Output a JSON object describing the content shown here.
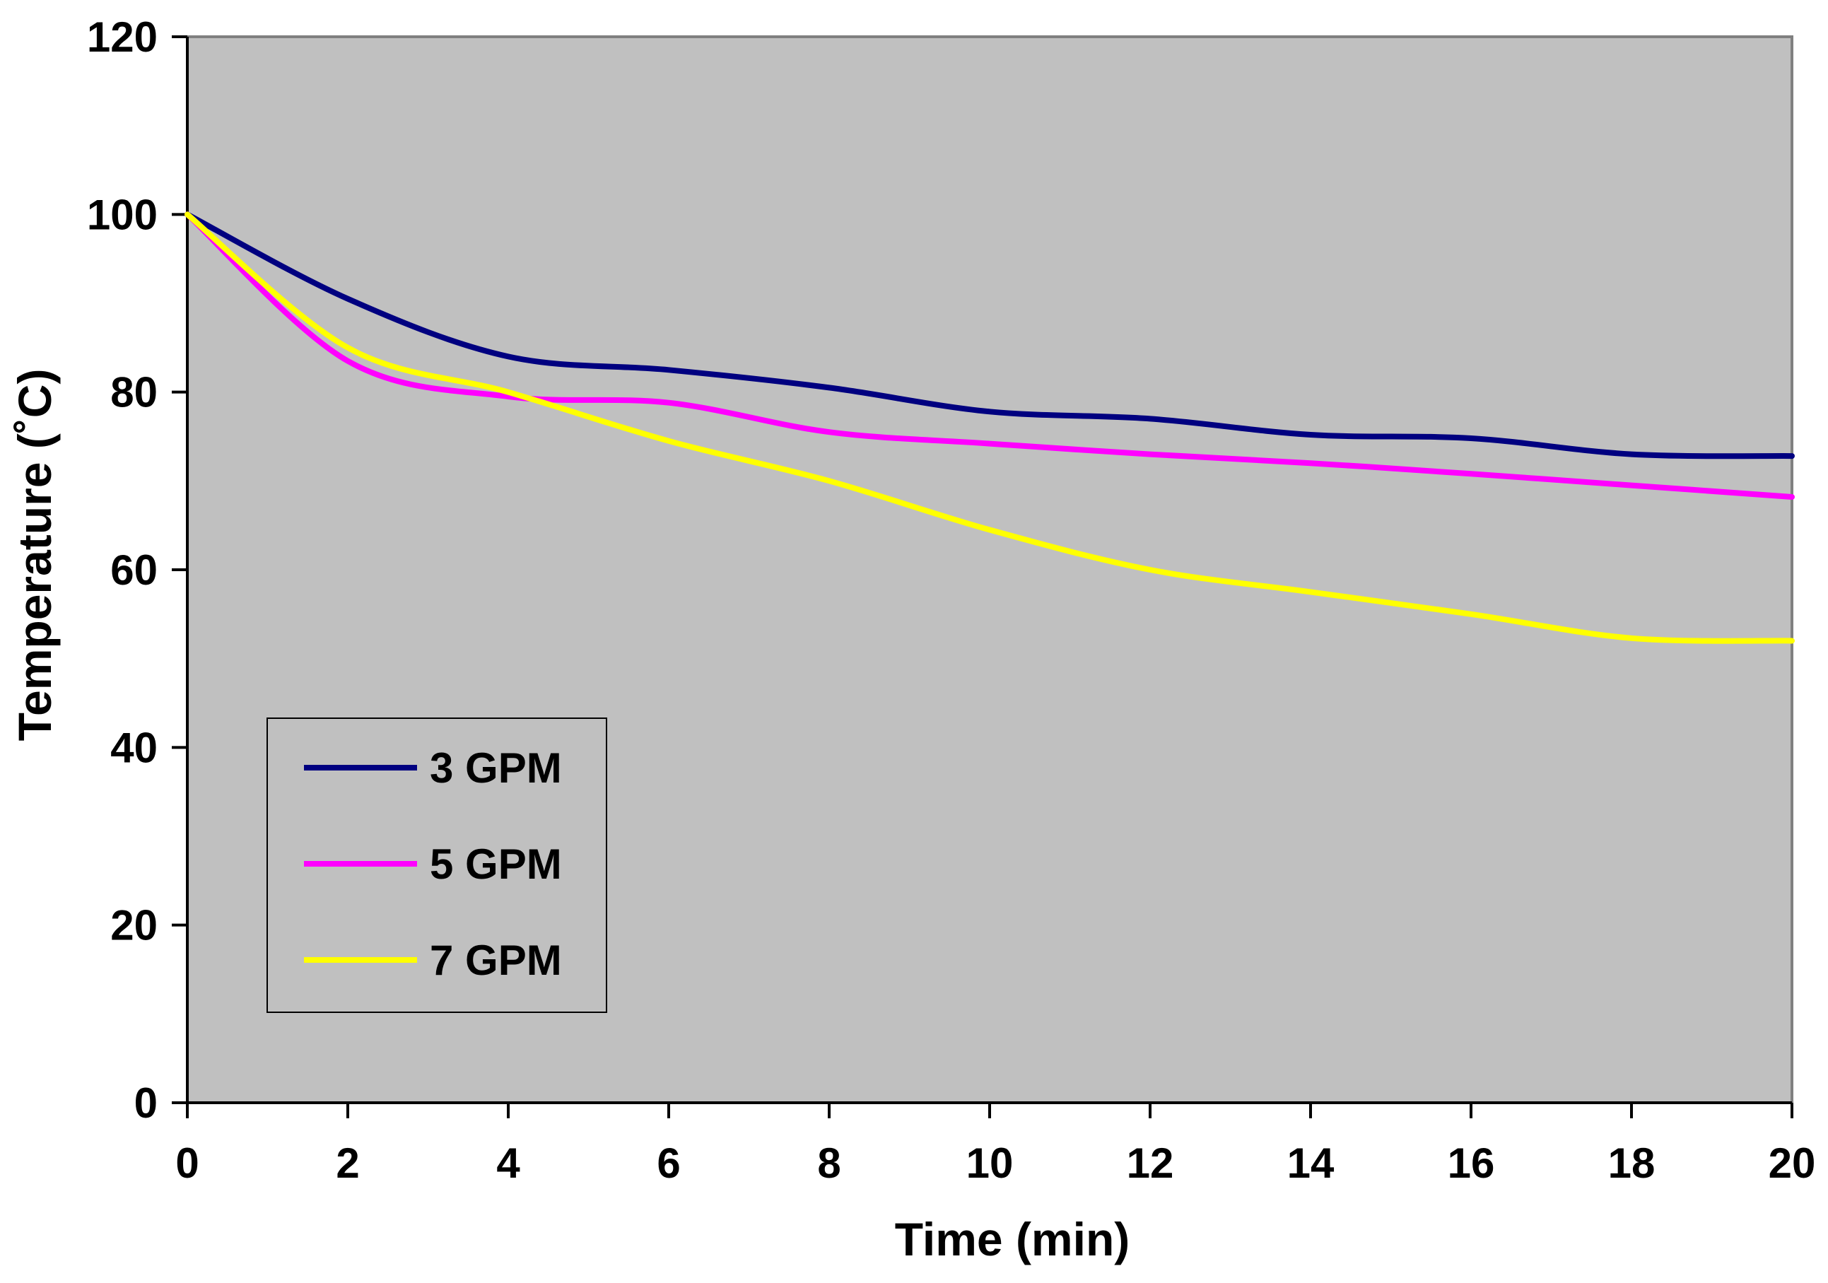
{
  "chart_data": {
    "type": "line",
    "title": "",
    "xlabel": "Time (min)",
    "ylabel": "Temperature (˚C)",
    "xlim": [
      0,
      20
    ],
    "ylim": [
      0,
      120
    ],
    "xticks": [
      0,
      2,
      4,
      6,
      8,
      10,
      12,
      14,
      16,
      18,
      20
    ],
    "yticks": [
      0,
      20,
      40,
      60,
      80,
      100,
      120
    ],
    "grid": false,
    "legend_position": "bottom-left",
    "colors": {
      "plot_background": "#c0c0c0",
      "plot_border": "#808080",
      "axis": "#000000"
    },
    "x": [
      0,
      2,
      4,
      6,
      8,
      10,
      12,
      14,
      16,
      18,
      20
    ],
    "series": [
      {
        "name": "3 GPM",
        "color": "#000080",
        "values": [
          100,
          90.5,
          84,
          82.5,
          80.5,
          77.8,
          77,
          75.2,
          74.8,
          73,
          72.8
        ]
      },
      {
        "name": "5 GPM",
        "color": "#ff00ff",
        "values": [
          100,
          83.5,
          79.5,
          78.8,
          75.5,
          74.2,
          73,
          72,
          70.8,
          69.5,
          68.2
        ]
      },
      {
        "name": "7 GPM",
        "color": "#ffff00",
        "values": [
          100,
          85,
          80,
          74.5,
          70,
          64.5,
          60,
          57.5,
          55,
          52.3,
          52
        ]
      }
    ]
  }
}
